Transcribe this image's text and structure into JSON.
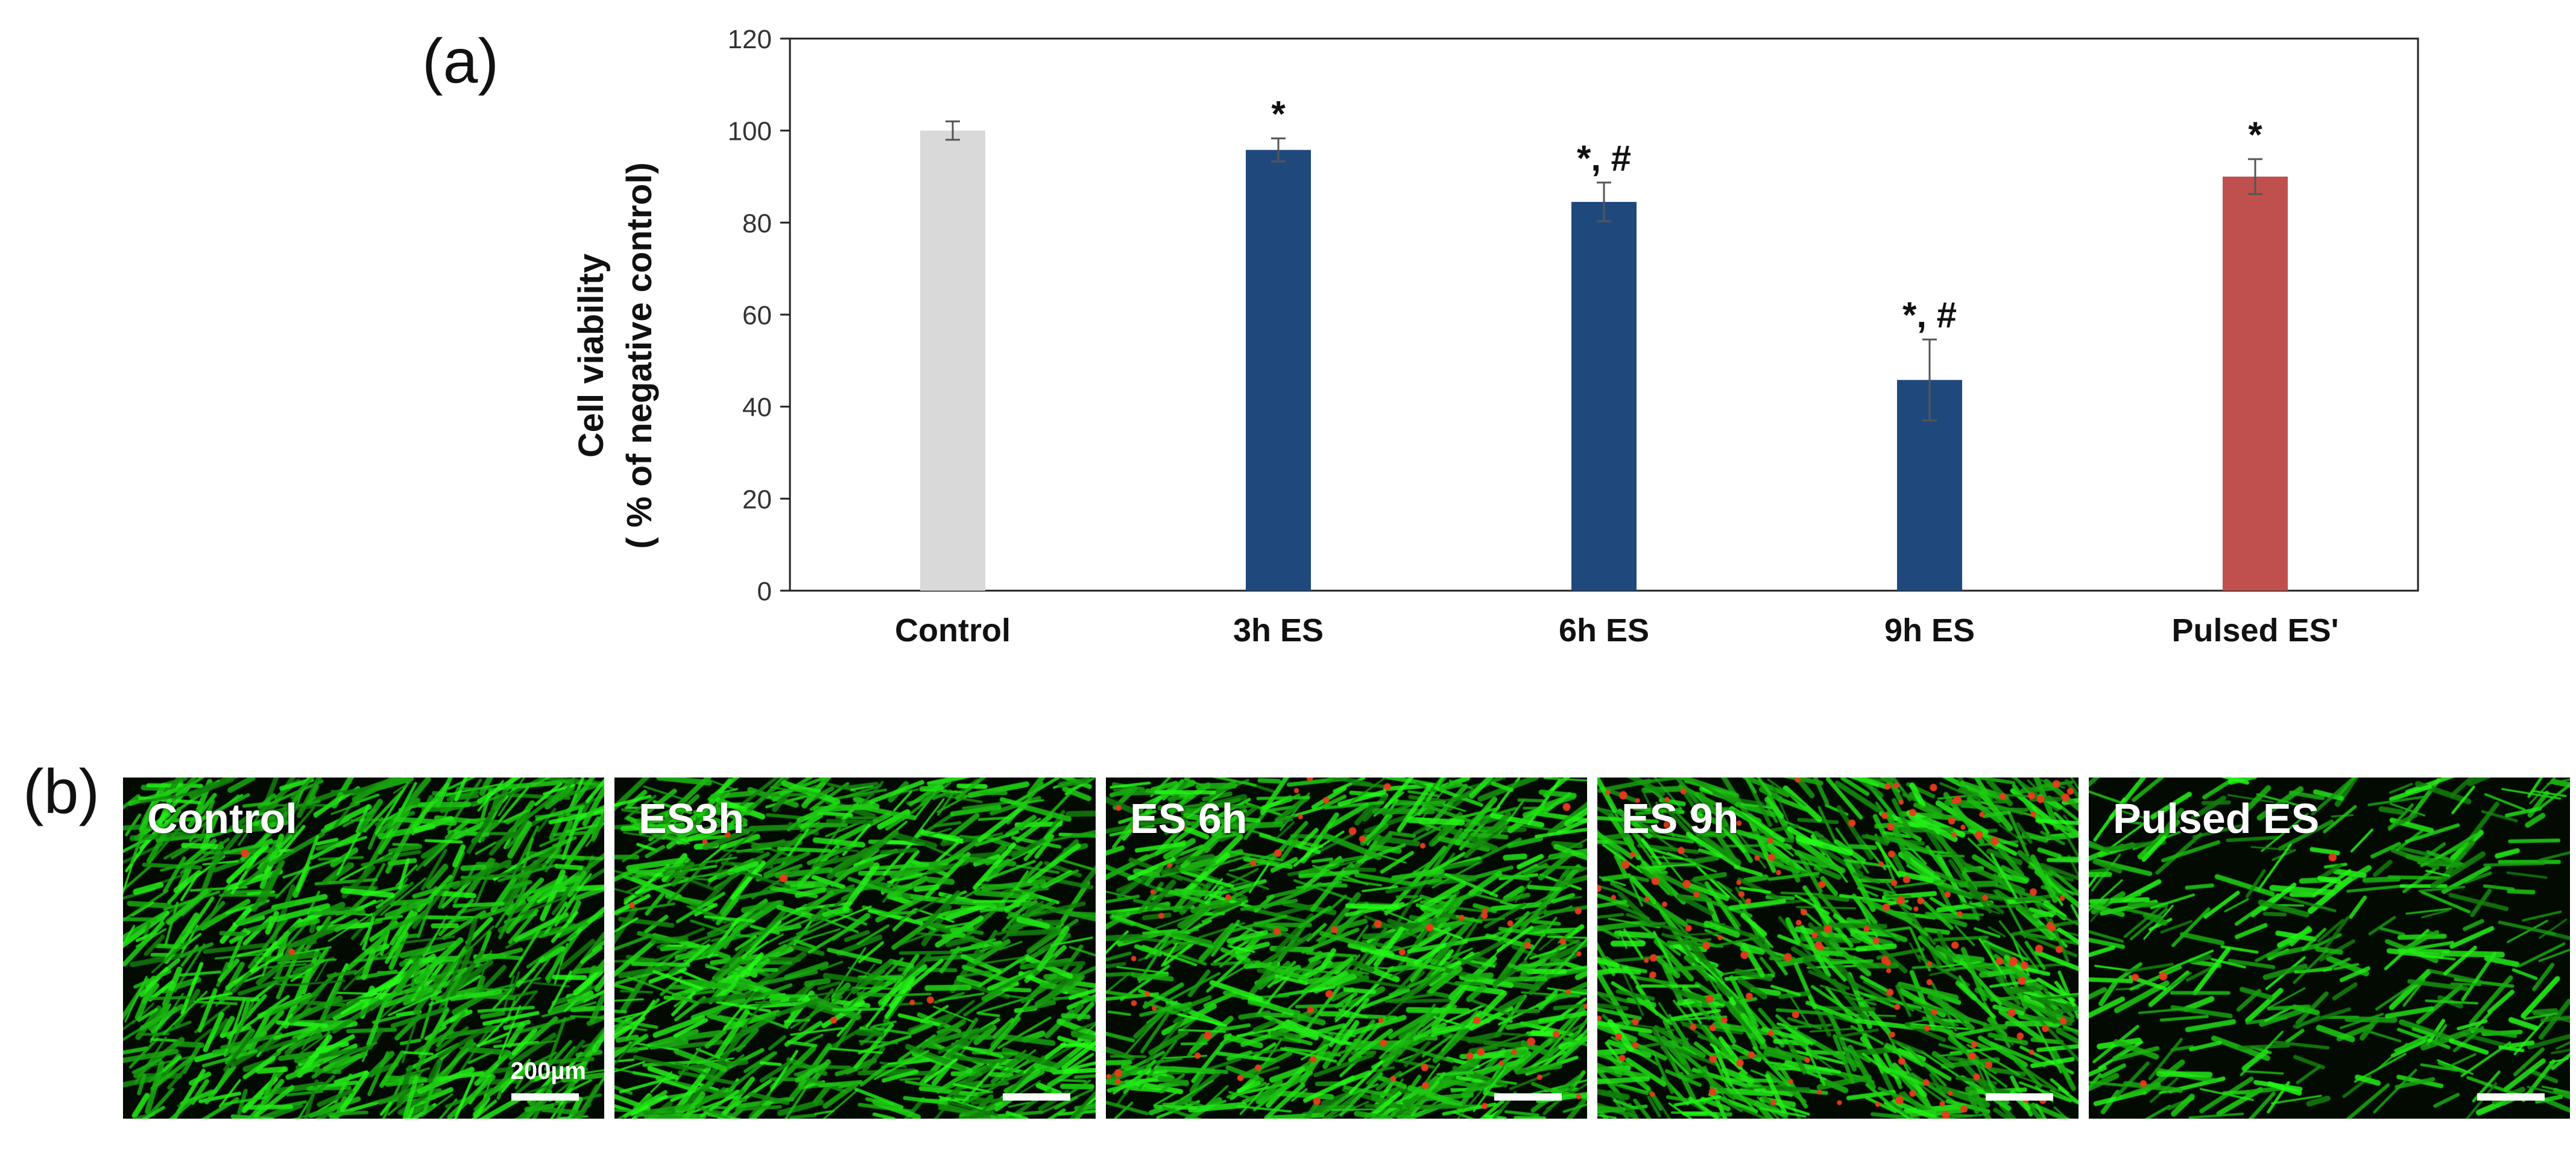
{
  "panel_a_label": "(a)",
  "panel_b_label": "(b)",
  "chart_data": {
    "type": "bar",
    "categories": [
      "Control",
      "3h ES",
      "6h ES",
      "9h ES",
      "Pulsed ES'"
    ],
    "values": [
      100,
      95.8,
      84.5,
      45.8,
      90.0
    ],
    "errors": [
      2.0,
      2.5,
      4.2,
      8.8,
      3.8
    ],
    "annotations": [
      "",
      "*",
      "*, #",
      "*, #",
      "*"
    ],
    "colors": [
      "#d9d9d9",
      "#1f497d",
      "#1f497d",
      "#1f497d",
      "#c0504d"
    ],
    "ylabel_line1": "Cell viability",
    "ylabel_line2": "( % of negative control)",
    "ylim": [
      0,
      120
    ],
    "yticks": [
      0,
      20,
      40,
      60,
      80,
      100,
      120
    ],
    "grid": false
  },
  "micrographs": [
    {
      "title": "Control",
      "scale_label": "200µm",
      "red_cells": 0.02
    },
    {
      "title": "ES3h",
      "scale_label": "",
      "red_cells": 0.05
    },
    {
      "title": "ES 6h",
      "scale_label": "",
      "red_cells": 0.45
    },
    {
      "title": "ES 9h",
      "scale_label": "",
      "red_cells": 1.0
    },
    {
      "title": "Pulsed ES",
      "scale_label": "",
      "red_cells": 0.03
    }
  ]
}
